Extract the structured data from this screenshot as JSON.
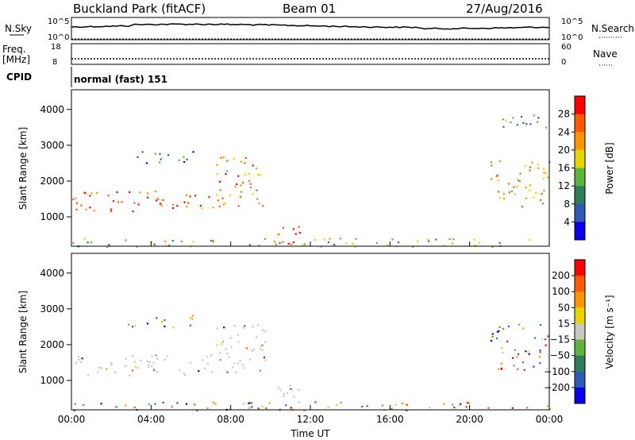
{
  "header": {
    "station": "Buckland Park (fitACF)",
    "beam": "Beam 01",
    "date": "27/Aug/2016"
  },
  "strip": {
    "nsky_label": "N.Sky",
    "nsearch_label": "N.Search",
    "freq_label_line1": "Freq.",
    "freq_label_line2": "[MHz]",
    "nave_label": "Nave",
    "cpid_label": "CPID",
    "cpid_text": "normal (fast) 151",
    "nsky_ticks": [
      "10^5",
      "10^0"
    ],
    "nsearch_ticks": [
      "10^5",
      "10^0"
    ],
    "freq_ticks": [
      "18",
      "8"
    ],
    "nave_ticks": [
      "60",
      "0"
    ]
  },
  "chart_data": [
    {
      "type": "heatmap",
      "title": "",
      "xlabel": "",
      "ylabel": "Slant Range [km]",
      "x_ticks": [
        "00:00",
        "04:00",
        "08:00",
        "12:00",
        "16:00",
        "20:00",
        "00:00"
      ],
      "y_ticks": [
        "1000",
        "2000",
        "3000",
        "4000"
      ],
      "xlim": [
        0,
        24
      ],
      "ylim": [
        180,
        4550
      ],
      "colorbar": {
        "label": "Power [dB]",
        "ticks": [
          "4",
          "8",
          "12",
          "16",
          "20",
          "24",
          "28"
        ],
        "range": [
          0,
          32
        ],
        "colors": [
          "#0a00f0",
          "#2f5ab4",
          "#2e7d5a",
          "#5fb43c",
          "#e8d400",
          "#ff9600",
          "#ff5a00",
          "#ff0000"
        ]
      },
      "regions": [
        {
          "name": "main-band-early",
          "t": [
            0,
            7.2
          ],
          "range_km": [
            1150,
            1750
          ],
          "value_db": 26
        },
        {
          "name": "main-band-rising",
          "t": [
            7.2,
            9.8
          ],
          "range_km": [
            1250,
            2700
          ],
          "value_db": 22
        },
        {
          "name": "upper-echo",
          "t": [
            2.8,
            6.2
          ],
          "range_km": [
            2500,
            2850
          ],
          "value_db": 9
        },
        {
          "name": "midday-near",
          "t": [
            10,
            11.5
          ],
          "range_km": [
            250,
            900
          ],
          "value_db": 27
        },
        {
          "name": "evening-band",
          "t": [
            21,
            24
          ],
          "range_km": [
            1300,
            2600
          ],
          "value_db": 21
        },
        {
          "name": "evening-upper",
          "t": [
            21.5,
            24
          ],
          "range_km": [
            3400,
            3900
          ],
          "value_db": 10
        },
        {
          "name": "ground-scatter-floor",
          "t": [
            0,
            24
          ],
          "range_km": [
            180,
            420
          ],
          "value_db": 16
        }
      ]
    },
    {
      "type": "heatmap",
      "title": "",
      "xlabel": "Time UT",
      "ylabel": "Slant Range [km]",
      "x_ticks": [
        "00:00",
        "04:00",
        "08:00",
        "12:00",
        "16:00",
        "20:00",
        "00:00"
      ],
      "y_ticks": [
        "1000",
        "2000",
        "3000",
        "4000"
      ],
      "xlim": [
        0,
        24
      ],
      "ylim": [
        180,
        4550
      ],
      "colorbar": {
        "label": "Velocity [m s⁻¹]",
        "ticks": [
          "200",
          "100",
          "50",
          "15",
          "−15",
          "−50",
          "−100",
          "−200"
        ],
        "range": [
          -250,
          250
        ],
        "colors": [
          "#0a00f0",
          "#2f5ab4",
          "#2e7d5a",
          "#5fb43c",
          "#c8c8be",
          "#e8d400",
          "#ff9600",
          "#ff5a00",
          "#ff0000"
        ]
      },
      "regions": [
        {
          "name": "main-band-early",
          "t": [
            0,
            7.2
          ],
          "range_km": [
            1150,
            1750
          ],
          "value": "ground-scatter-grey"
        },
        {
          "name": "main-band-rising",
          "t": [
            7.2,
            9.8
          ],
          "range_km": [
            1250,
            2700
          ],
          "value": "ground-scatter-grey"
        },
        {
          "name": "upper-echo",
          "t": [
            2.8,
            6.2
          ],
          "range_km": [
            2500,
            2850
          ],
          "value": "mixed"
        },
        {
          "name": "midday-near",
          "t": [
            10,
            11.5
          ],
          "range_km": [
            250,
            900
          ],
          "value": "ground-scatter-grey"
        },
        {
          "name": "evening-band",
          "t": [
            21,
            24
          ],
          "range_km": [
            1300,
            2600
          ],
          "value": "mixed"
        },
        {
          "name": "ground-scatter-floor",
          "t": [
            0,
            24
          ],
          "range_km": [
            180,
            420
          ],
          "value": "mixed"
        }
      ]
    }
  ]
}
